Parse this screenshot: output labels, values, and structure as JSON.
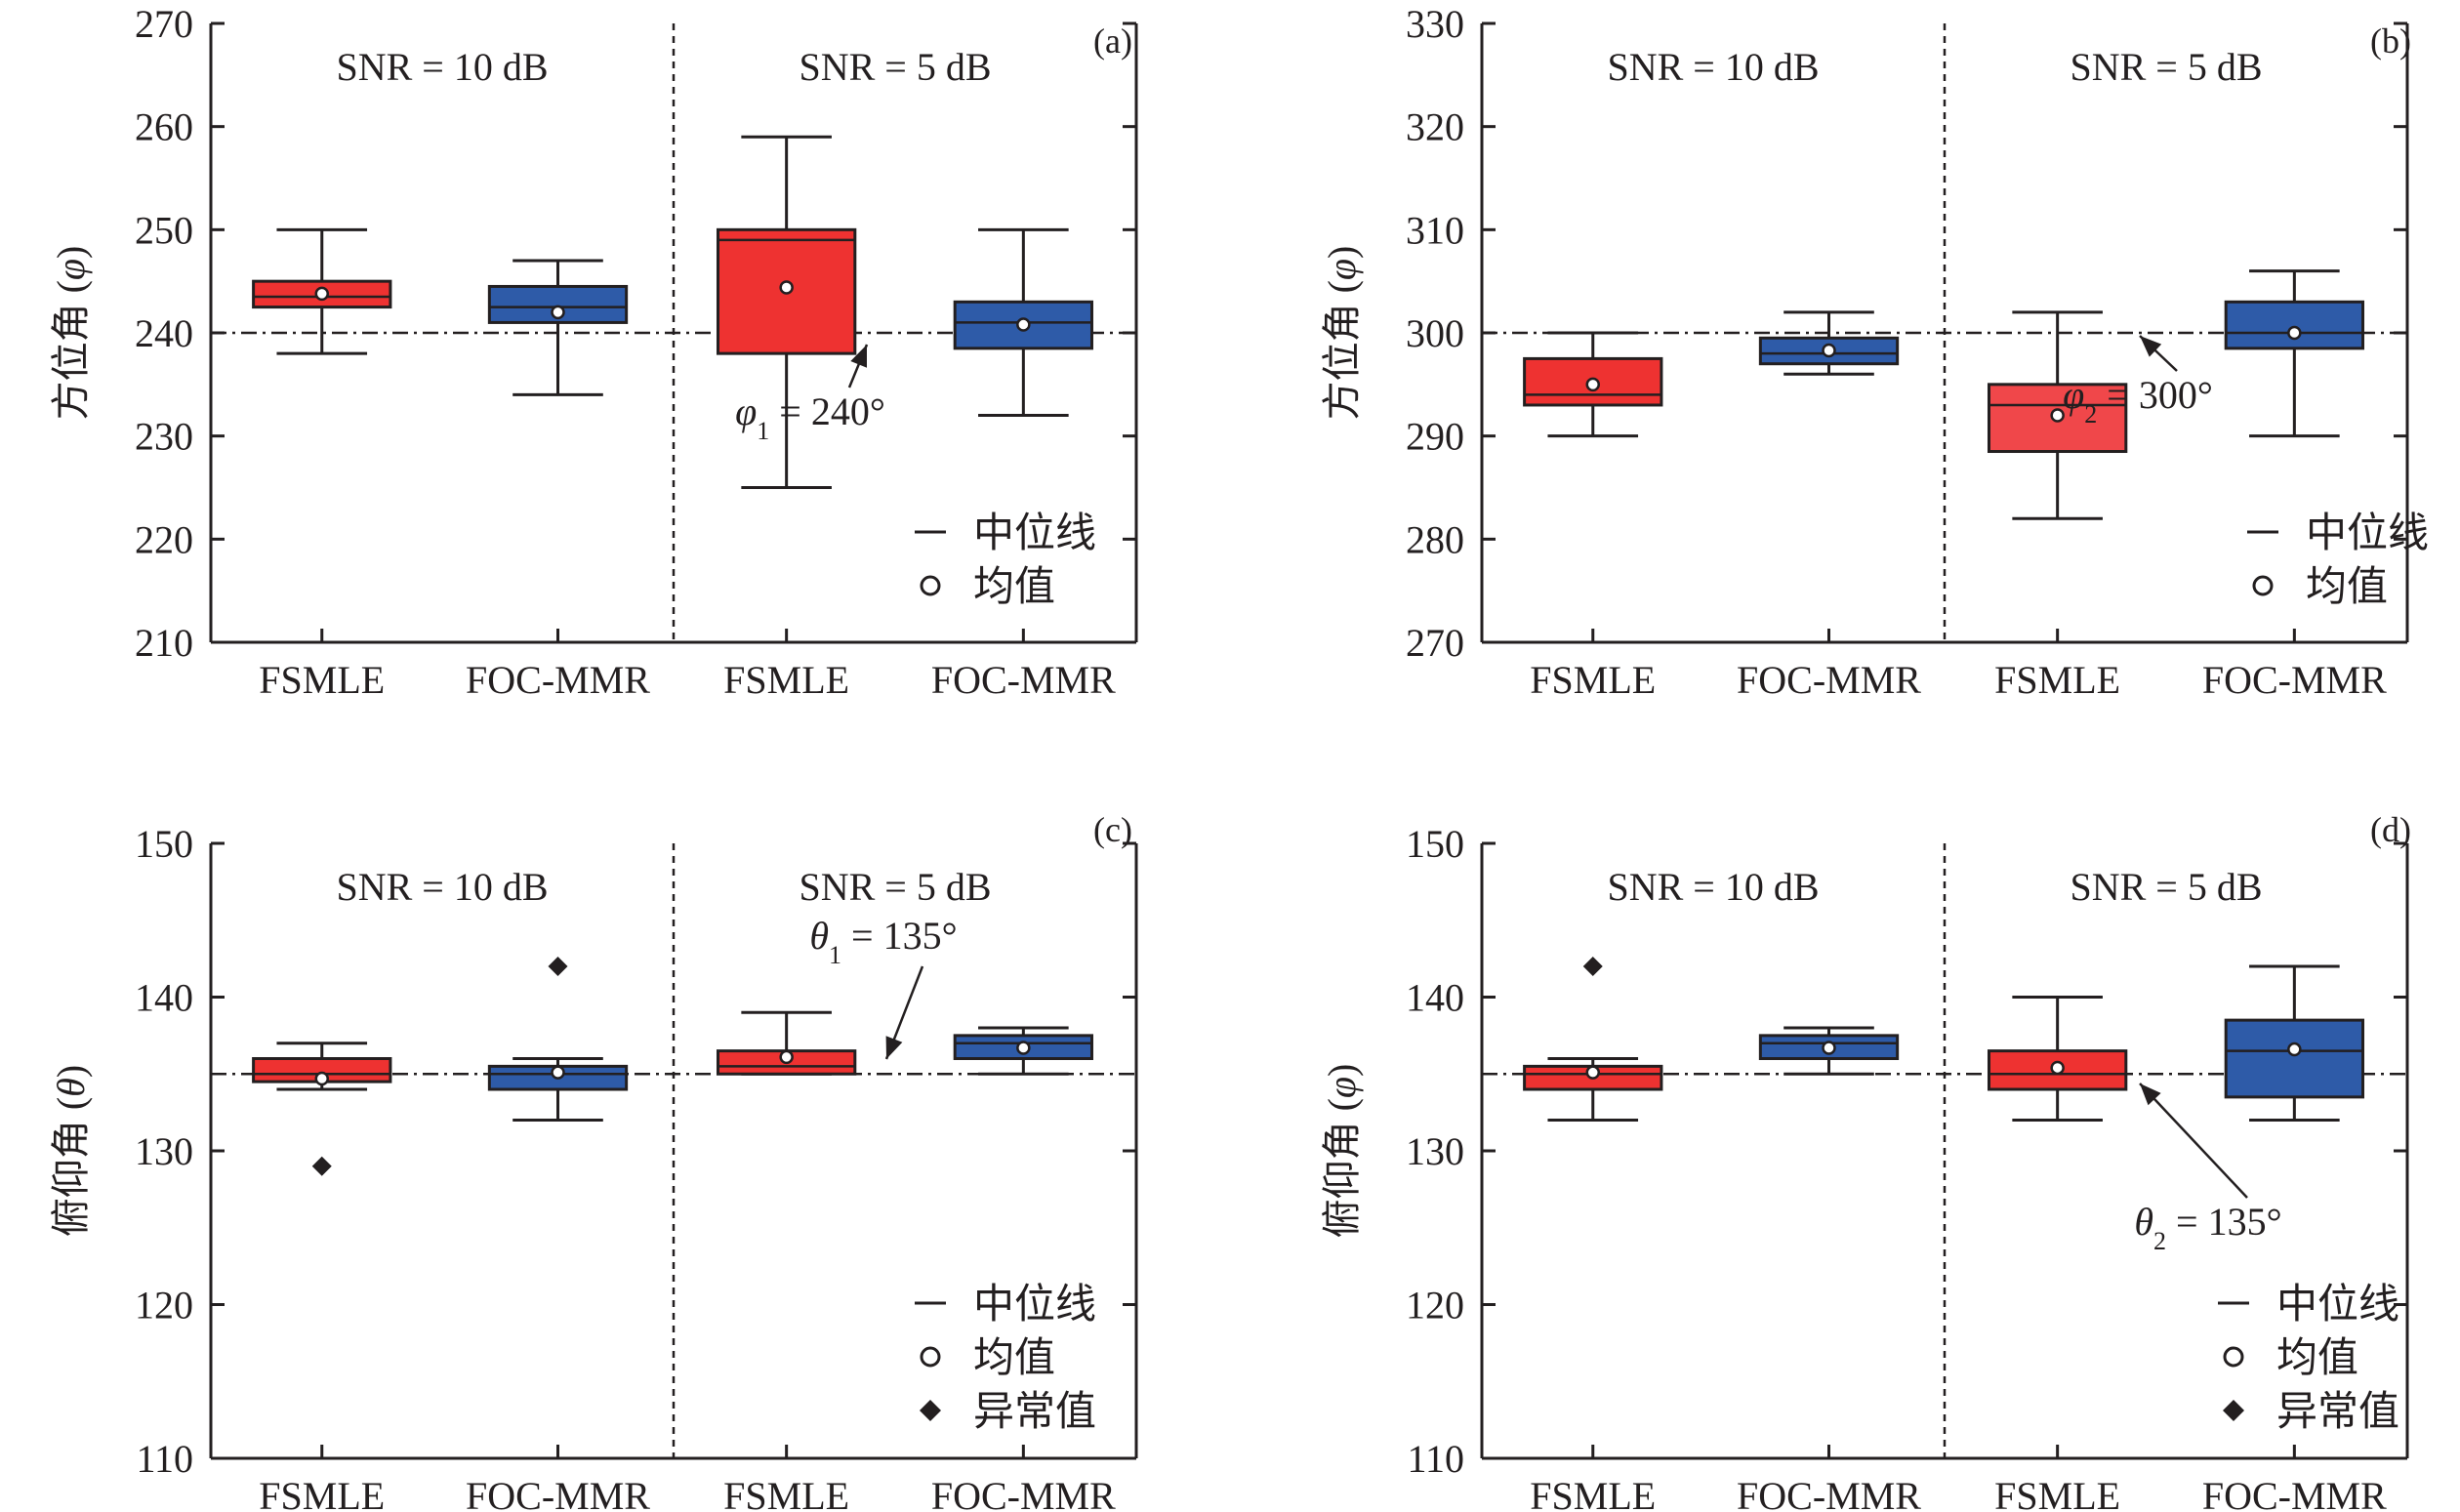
{
  "colors": {
    "red": "#ee3231",
    "red_light": "#f0474a",
    "blue": "#2e5ba8",
    "axis": "#231f20"
  },
  "legend": {
    "median": "中位线",
    "mean": "均值",
    "outlier": "异常值"
  },
  "chart_data": [
    {
      "panel": "(a)",
      "type": "box",
      "ylabel_text": "方位角 (",
      "ylabel_sym": "φ",
      "ylabel_close": ")",
      "ylim": [
        210,
        270
      ],
      "yticks": [
        "210",
        "220",
        "230",
        "240",
        "250",
        "260",
        "270"
      ],
      "groups": [
        "SNR = 10 dB",
        "SNR = 5 dB"
      ],
      "categories": [
        "FSMLE",
        "FOC-MMR",
        "FSMLE",
        "FOC-MMR"
      ],
      "reference": 240,
      "annotation": {
        "sym": "φ",
        "sub": "1",
        "text": " = 240°",
        "target": 240
      },
      "legend_items": [
        "median",
        "mean"
      ],
      "boxes": [
        {
          "color": "red",
          "min": 238,
          "q1": 242.5,
          "median": 243.5,
          "q3": 245,
          "max": 250,
          "mean": 243.8,
          "outliers": []
        },
        {
          "color": "blue",
          "min": 234,
          "q1": 241,
          "median": 242.5,
          "q3": 244.5,
          "max": 247,
          "mean": 242,
          "outliers": []
        },
        {
          "color": "red",
          "min": 225,
          "q1": 238,
          "median": 249,
          "q3": 250,
          "max": 259,
          "mean": 244.4,
          "outliers": []
        },
        {
          "color": "blue",
          "min": 232,
          "q1": 238.5,
          "median": 241,
          "q3": 243,
          "max": 250,
          "mean": 240.8,
          "outliers": []
        }
      ]
    },
    {
      "panel": "(b)",
      "type": "box",
      "ylabel_text": "方位角 (",
      "ylabel_sym": "φ",
      "ylabel_close": ")",
      "ylim": [
        270,
        330
      ],
      "yticks": [
        "270",
        "280",
        "290",
        "300",
        "310",
        "320",
        "330"
      ],
      "groups": [
        "SNR = 10 dB",
        "SNR = 5 dB"
      ],
      "categories": [
        "FSMLE",
        "FOC-MMR",
        "FSMLE",
        "FOC-MMR"
      ],
      "reference": 300,
      "annotation": {
        "sym": "φ",
        "sub": "2",
        "text": " = 300°",
        "target": 300
      },
      "legend_items": [
        "median",
        "mean"
      ],
      "boxes": [
        {
          "color": "red",
          "min": 290,
          "q1": 293,
          "median": 294,
          "q3": 297.5,
          "max": 300,
          "mean": 295,
          "outliers": []
        },
        {
          "color": "blue",
          "min": 296,
          "q1": 297,
          "median": 298,
          "q3": 299.5,
          "max": 302,
          "mean": 298.3,
          "outliers": []
        },
        {
          "color": "red_light",
          "min": 282,
          "q1": 288.5,
          "median": 293,
          "q3": 295,
          "max": 302,
          "mean": 292,
          "outliers": []
        },
        {
          "color": "blue",
          "min": 290,
          "q1": 298.5,
          "median": 300,
          "q3": 303,
          "max": 306,
          "mean": 300,
          "outliers": []
        }
      ]
    },
    {
      "panel": "(c)",
      "type": "box",
      "ylabel_text": "俯仰角 (",
      "ylabel_sym": "θ",
      "ylabel_close": ")",
      "ylim": [
        110,
        150
      ],
      "yticks": [
        "110",
        "120",
        "130",
        "140",
        "150"
      ],
      "groups": [
        "SNR = 10 dB",
        "SNR = 5 dB"
      ],
      "categories": [
        "FSMLE",
        "FOC-MMR",
        "FSMLE",
        "FOC-MMR"
      ],
      "reference": 135,
      "annotation": {
        "sym": "θ",
        "sub": "1",
        "text": " = 135°",
        "target": 135
      },
      "legend_items": [
        "median",
        "mean",
        "outlier"
      ],
      "boxes": [
        {
          "color": "red",
          "min": 134,
          "q1": 134.5,
          "median": 135,
          "q3": 136,
          "max": 137,
          "mean": 134.7,
          "outliers": [
            129
          ]
        },
        {
          "color": "blue",
          "min": 132,
          "q1": 134,
          "median": 135,
          "q3": 135.5,
          "max": 136,
          "mean": 135.1,
          "outliers": [
            142
          ]
        },
        {
          "color": "red",
          "min": 135,
          "q1": 135,
          "median": 135.5,
          "q3": 136.5,
          "max": 139,
          "mean": 136.1,
          "outliers": []
        },
        {
          "color": "blue",
          "min": 135,
          "q1": 136,
          "median": 137,
          "q3": 137.5,
          "max": 138,
          "mean": 136.7,
          "outliers": []
        }
      ]
    },
    {
      "panel": "(d)",
      "type": "box",
      "ylabel_text": "俯仰角 (",
      "ylabel_sym": "φ",
      "ylabel_close": ")",
      "ylim": [
        110,
        150
      ],
      "yticks": [
        "110",
        "120",
        "130",
        "140",
        "150"
      ],
      "groups": [
        "SNR = 10 dB",
        "SNR = 5 dB"
      ],
      "categories": [
        "FSMLE",
        "FOC-MMR",
        "FSMLE",
        "FOC-MMR"
      ],
      "reference": 135,
      "annotation": {
        "sym": "θ",
        "sub": "2",
        "text": " = 135°",
        "target": 135
      },
      "legend_items": [
        "median",
        "mean",
        "outlier"
      ],
      "boxes": [
        {
          "color": "red",
          "min": 132,
          "q1": 134,
          "median": 135,
          "q3": 135.5,
          "max": 136,
          "mean": 135.1,
          "outliers": [
            142
          ]
        },
        {
          "color": "blue",
          "min": 135,
          "q1": 136,
          "median": 137,
          "q3": 137.5,
          "max": 138,
          "mean": 136.7,
          "outliers": []
        },
        {
          "color": "red",
          "min": 132,
          "q1": 134,
          "median": 135,
          "q3": 136.5,
          "max": 140,
          "mean": 135.4,
          "outliers": []
        },
        {
          "color": "blue",
          "min": 132,
          "q1": 133.5,
          "median": 136.5,
          "q3": 138.5,
          "max": 142,
          "mean": 136.6,
          "outliers": []
        }
      ]
    }
  ]
}
